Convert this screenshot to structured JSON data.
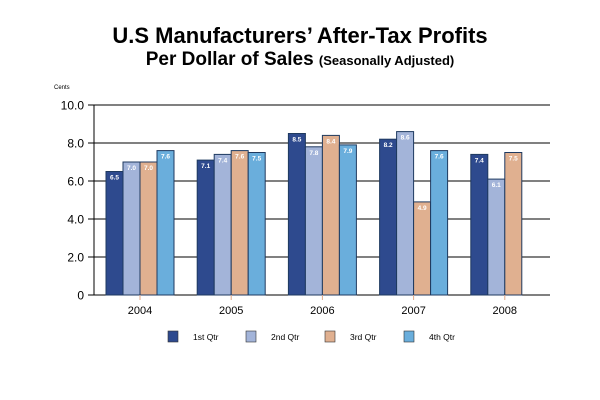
{
  "chart_data": {
    "type": "bar",
    "title": "U.S Manufacturers’ After-Tax Profits",
    "subtitle_main": "Per Dollar of Sales",
    "subtitle_note": "(Seasonally Adjusted)",
    "ylabel": "Cents",
    "xlabel": "",
    "ylim": [
      0,
      10
    ],
    "yticks": [
      0,
      2,
      4,
      6,
      8,
      10
    ],
    "ytick_labels": [
      "0",
      "2.0",
      "4.0",
      "6.0",
      "8.0",
      "10.0"
    ],
    "grid": true,
    "legend_position": "bottom",
    "categories": [
      "2004",
      "2005",
      "2006",
      "2007",
      "2008"
    ],
    "series": [
      {
        "name": "1st Qtr",
        "color": "#2e4a8e",
        "values": [
          6.5,
          7.1,
          8.5,
          8.2,
          7.4
        ],
        "labels": [
          "6.5",
          "7.1",
          "8.5",
          "8.2",
          "7.4"
        ]
      },
      {
        "name": "2nd Qtr",
        "color": "#a3b4d9",
        "values": [
          7.0,
          7.4,
          7.8,
          8.6,
          6.1
        ],
        "labels": [
          "7.0",
          "7.4",
          "7.8",
          "8.6",
          "6.1"
        ]
      },
      {
        "name": "3rd Qtr",
        "color": "#e0b090",
        "values": [
          7.0,
          7.6,
          8.4,
          4.9,
          7.5
        ],
        "labels": [
          "7.0",
          "7.6",
          "8.4",
          "4.9",
          "7.5"
        ]
      },
      {
        "name": "4th Qtr",
        "color": "#6aaedc",
        "values": [
          7.6,
          7.5,
          7.9,
          7.6,
          null
        ],
        "labels": [
          "7.6",
          "7.5",
          "7.9",
          "7.6",
          null
        ]
      }
    ]
  }
}
